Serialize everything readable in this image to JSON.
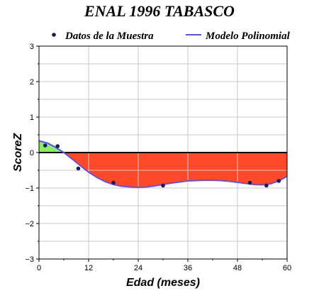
{
  "chart_data": {
    "type": "line",
    "title": "ENAL 1996 TABASCO",
    "xlabel": "Edad (meses)",
    "ylabel": "ScoreZ",
    "xlim": [
      0,
      60
    ],
    "ylim": [
      -3,
      3
    ],
    "x_ticks": [
      0,
      12,
      24,
      36,
      48,
      60
    ],
    "y_ticks": [
      -3,
      -2,
      -1,
      0,
      1,
      2,
      3
    ],
    "x_tick_labels": [
      "0",
      "12",
      "24",
      "36",
      "48",
      "60"
    ],
    "y_tick_labels": [
      "−3",
      "−2",
      "−1",
      "0",
      "1",
      "2",
      "3"
    ],
    "grid": true,
    "legend": [
      {
        "name": "Datos de la Muestra",
        "kind": "marker",
        "color": "#1a1a5e"
      },
      {
        "name": "Modelo Polinomial",
        "kind": "line",
        "color": "#5555ee"
      }
    ],
    "legend_position": "top",
    "series": [
      {
        "name": "Datos de la Muestra",
        "kind": "scatter",
        "x": [
          1.5,
          4.5,
          9.5,
          18,
          30,
          51,
          55,
          58
        ],
        "y": [
          0.2,
          0.18,
          -0.45,
          -0.85,
          -0.93,
          -0.85,
          -0.93,
          -0.8
        ]
      },
      {
        "name": "Modelo Polinomial",
        "kind": "line",
        "x": [
          0,
          2,
          4,
          6,
          8,
          10,
          12,
          14,
          16,
          18,
          20,
          22,
          24,
          26,
          28,
          30,
          32,
          34,
          36,
          38,
          40,
          42,
          44,
          46,
          48,
          50,
          52,
          54,
          56,
          58,
          60
        ],
        "y": [
          0.33,
          0.27,
          0.15,
          0.0,
          -0.18,
          -0.37,
          -0.55,
          -0.7,
          -0.82,
          -0.9,
          -0.95,
          -0.97,
          -0.98,
          -0.97,
          -0.94,
          -0.9,
          -0.86,
          -0.83,
          -0.8,
          -0.79,
          -0.78,
          -0.78,
          -0.79,
          -0.81,
          -0.84,
          -0.87,
          -0.9,
          -0.91,
          -0.88,
          -0.8,
          -0.67
        ]
      }
    ],
    "fill_colors": {
      "positive": "#88ee66",
      "negative": "#ff4a2a"
    },
    "colors": {
      "data_point": "#1a1a5e",
      "model_line": "#5555ee",
      "zero_line": "#000000",
      "grid": "#c8c8c8"
    }
  }
}
